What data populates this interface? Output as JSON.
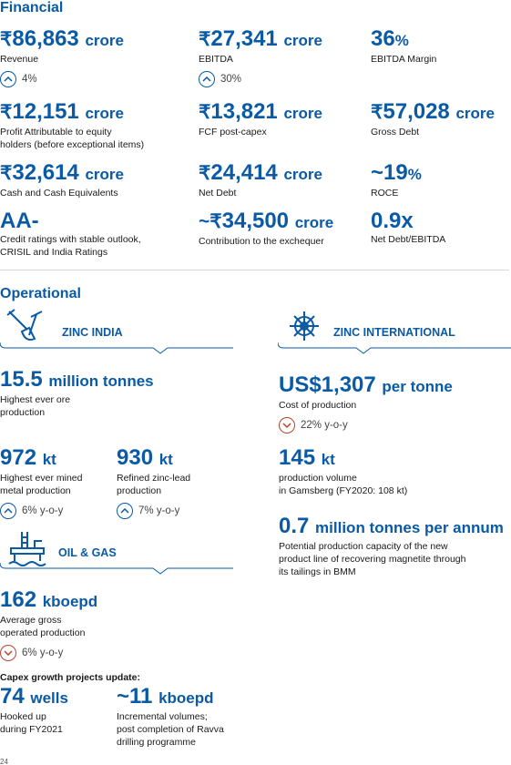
{
  "financial": {
    "title": "Financial",
    "metrics": [
      {
        "currency": "₹",
        "value": "86,863",
        "unit": "crore",
        "label": "Revenue",
        "change": "4%",
        "direction": "up"
      },
      {
        "currency": "₹",
        "value": "27,341",
        "unit": "crore",
        "label": "EBITDA",
        "change": "30%",
        "direction": "up"
      },
      {
        "currency": "",
        "value": "36",
        "unit": "%",
        "label": "EBITDA Margin"
      },
      {
        "currency": "₹",
        "value": "12,151",
        "unit": "crore",
        "label_lines": [
          "Profit Attributable to equity",
          "holders (before exceptional items)"
        ]
      },
      {
        "currency": "₹",
        "value": "13,821",
        "unit": "crore",
        "label": "FCF post-capex"
      },
      {
        "currency": "₹",
        "value": "57,028",
        "unit": "crore",
        "label": "Gross Debt"
      },
      {
        "currency": "₹",
        "value": "32,614",
        "unit": "crore",
        "label": "Cash and Cash Equivalents"
      },
      {
        "currency": "₹",
        "value": "24,414",
        "unit": "crore",
        "label": "Net Debt"
      },
      {
        "currency": "",
        "value": "~19",
        "unit": "%",
        "label": "ROCE"
      },
      {
        "currency": "",
        "value": "AA-",
        "unit": "",
        "label_lines": [
          "Credit ratings with stable outlook,",
          "CRISIL and India Ratings"
        ]
      },
      {
        "currency": "~₹",
        "value": "34,500",
        "unit": "crore",
        "label": "Contribution to the exchequer"
      },
      {
        "currency": "",
        "value": "0.9x",
        "unit": "",
        "label": "Net Debt/EBITDA"
      }
    ]
  },
  "operational": {
    "title": "Operational",
    "zinc_india": {
      "label": "ZINC INDIA",
      "ore": {
        "value": "15.5",
        "unit": "million tonnes",
        "label_lines": [
          "Highest ever ore",
          "production"
        ]
      },
      "mined": {
        "value": "972",
        "unit": "kt",
        "label_lines": [
          "Highest ever mined",
          "metal production"
        ],
        "change": "6% y-o-y",
        "direction": "up"
      },
      "refined": {
        "value": "930",
        "unit": "kt",
        "label_lines": [
          "Refined zinc-lead",
          "production"
        ],
        "change": "7% y-o-y",
        "direction": "up"
      }
    },
    "zinc_international": {
      "label": "ZINC INTERNATIONAL",
      "cost": {
        "value": "US$1,307",
        "unit": "per tonne",
        "label": "Cost of production",
        "change": "22% y-o-y",
        "direction": "down"
      },
      "gamsberg": {
        "value": "145",
        "unit": "kt",
        "label_lines": [
          "production volume",
          "in Gamsberg (FY2020: 108 kt)"
        ]
      },
      "magnetite": {
        "value": "0.7",
        "unit": "million tonnes per annum",
        "label_lines": [
          "Potential production capacity of the new",
          "product line of recovering magnetite through",
          "its tailings in BMM"
        ]
      }
    },
    "oil_gas": {
      "label": "OIL & GAS",
      "production": {
        "value": "162",
        "unit": "kboepd",
        "label_lines": [
          "Average gross",
          "operated production"
        ],
        "change": "6% y-o-y",
        "direction": "down"
      }
    },
    "capex": {
      "title": "Capex growth projects update:",
      "wells": {
        "value": "74",
        "unit": "wells",
        "label_lines": [
          "Hooked up",
          "during FY2021"
        ]
      },
      "incremental": {
        "value": "~11",
        "unit": "kboepd",
        "label_lines": [
          "Incremental volumes;",
          "post completion of Ravva",
          "drilling programme"
        ]
      }
    }
  },
  "page_number": "24"
}
